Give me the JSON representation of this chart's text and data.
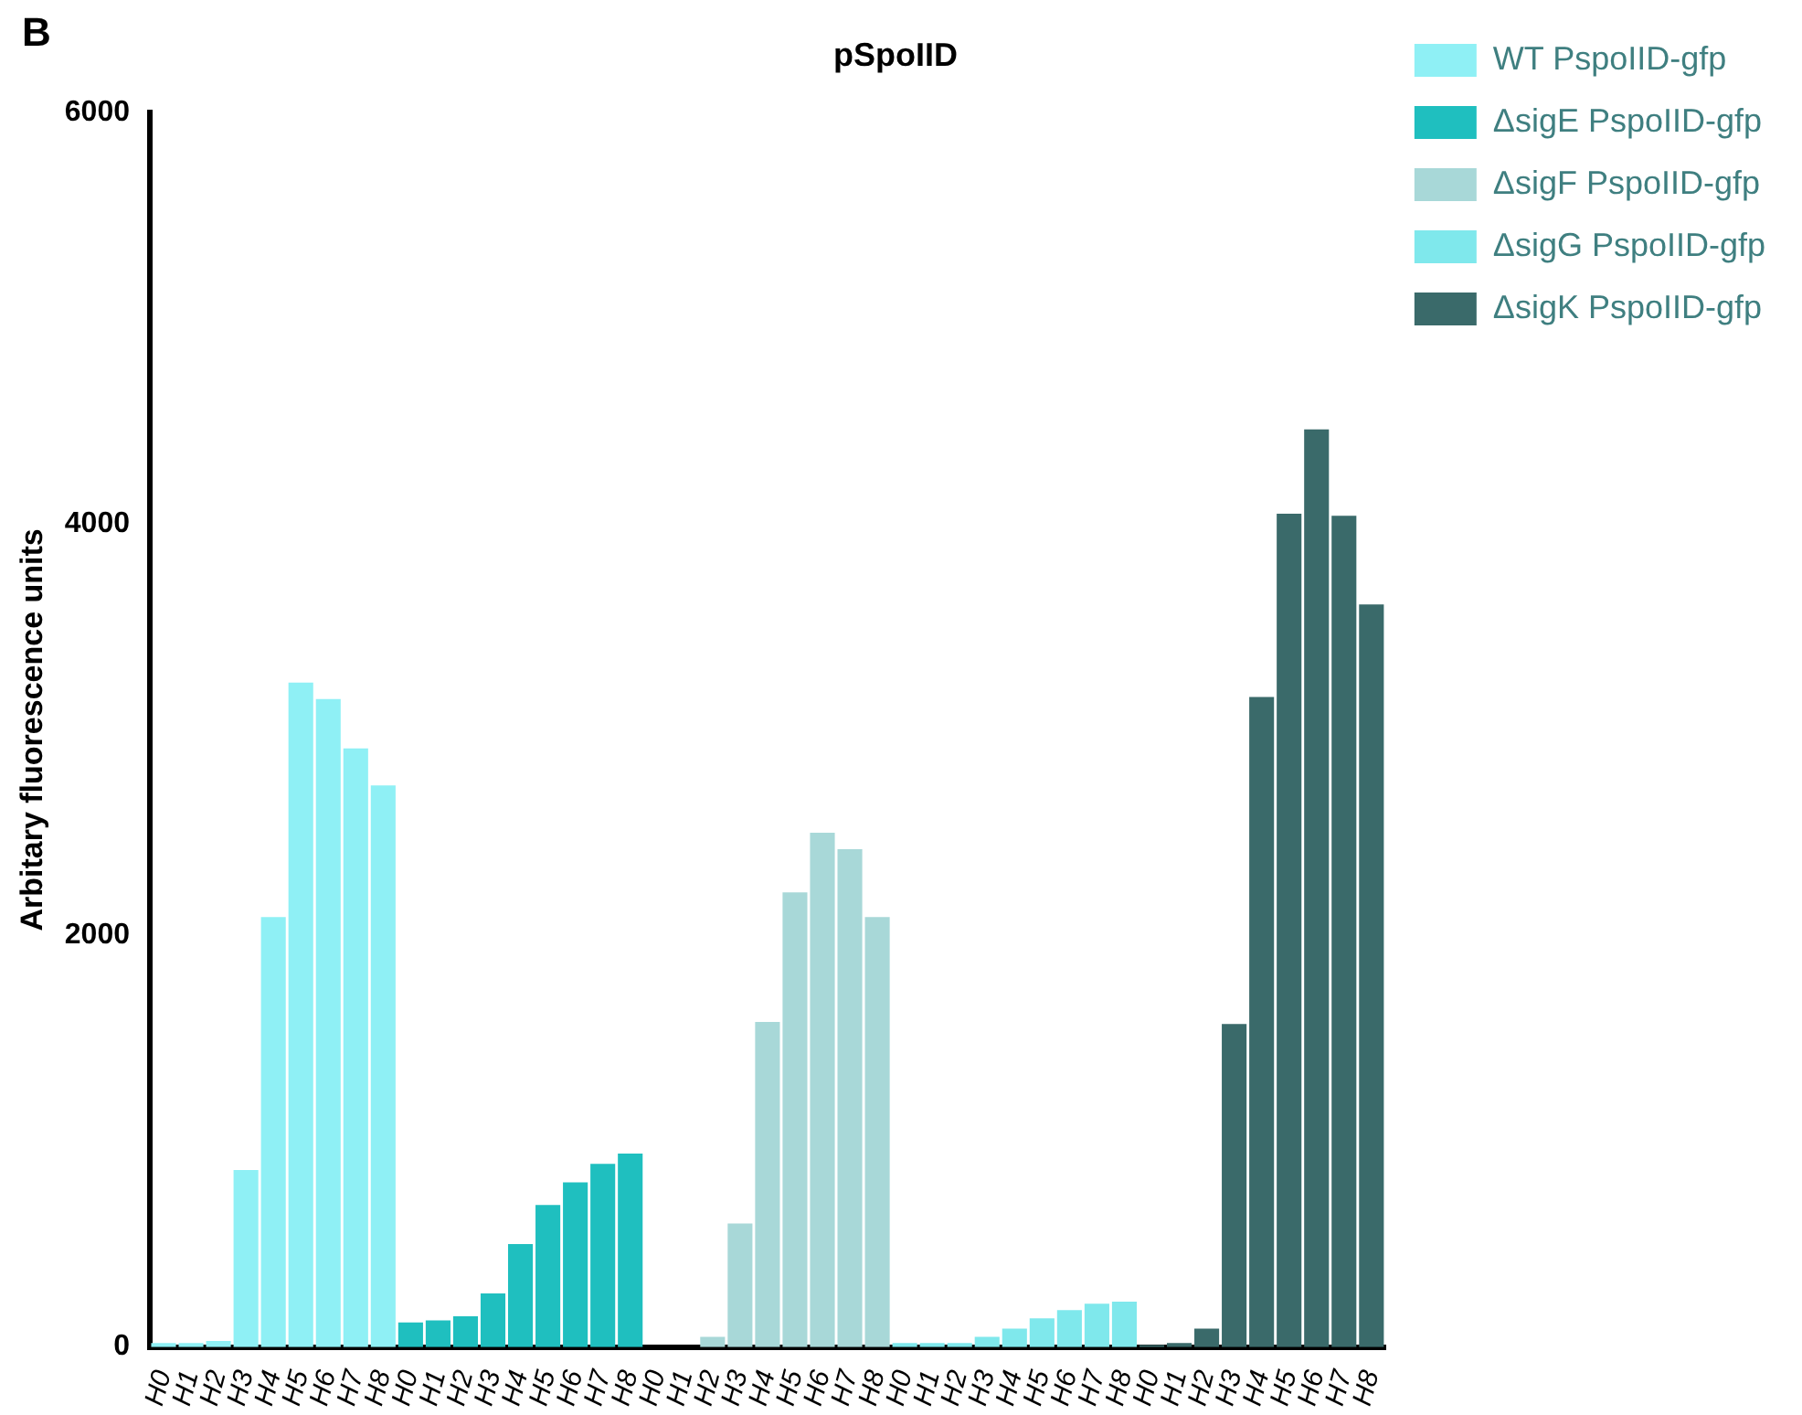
{
  "chart_data": {
    "type": "bar",
    "title": "pSpoIID",
    "ylabel": "Arbitary fluorescence units",
    "annotations": [
      "B"
    ],
    "categories": [
      "H0",
      "H1",
      "H2",
      "H3",
      "H4",
      "H5",
      "H6",
      "H7",
      "H8",
      "H0",
      "H1",
      "H2",
      "H3",
      "H4",
      "H5",
      "H6",
      "H7",
      "H8",
      "H0",
      "H1",
      "H2",
      "H3",
      "H4",
      "H5",
      "H6",
      "H7",
      "H8",
      "H0",
      "H1",
      "H2",
      "H3",
      "H4",
      "H5",
      "H6",
      "H7",
      "H8",
      "H0",
      "H1",
      "H2",
      "H3",
      "H4",
      "H5",
      "H6",
      "H7",
      "H8"
    ],
    "series": [
      {
        "name": "WT PspoIID-gfp",
        "color": "#8ff0f5",
        "values": [
          20,
          20,
          30,
          860,
          2090,
          3230,
          3150,
          2910,
          2730,
          null,
          null,
          null,
          null,
          null,
          null,
          null,
          null,
          null,
          null,
          null,
          null,
          null,
          null,
          null,
          null,
          null,
          null,
          null,
          null,
          null,
          null,
          null,
          null,
          null,
          null,
          null,
          null,
          null,
          null,
          null,
          null,
          null,
          null,
          null,
          null
        ]
      },
      {
        "name": "ΔsigE PspoIID-gfp",
        "color": "#1fbfbf",
        "values": [
          null,
          null,
          null,
          null,
          null,
          null,
          null,
          null,
          null,
          120,
          130,
          150,
          260,
          500,
          690,
          800,
          890,
          940,
          null,
          null,
          null,
          null,
          null,
          null,
          null,
          null,
          null,
          null,
          null,
          null,
          null,
          null,
          null,
          null,
          null,
          null,
          null,
          null,
          null,
          null,
          null,
          null,
          null,
          null,
          null
        ]
      },
      {
        "name": "ΔsigF PspoIID-gfp",
        "color": "#a8d8d8",
        "values": [
          null,
          null,
          null,
          null,
          null,
          null,
          null,
          null,
          null,
          null,
          null,
          null,
          null,
          null,
          null,
          null,
          null,
          null,
          null,
          null,
          50,
          600,
          1580,
          2210,
          2500,
          2420,
          2090,
          null,
          null,
          null,
          null,
          null,
          null,
          null,
          null,
          null,
          null,
          null,
          null,
          null,
          null,
          null,
          null,
          null,
          null
        ]
      },
      {
        "name": "ΔsigG PspoIID-gfp",
        "color": "#7fe8ec",
        "values": [
          null,
          null,
          null,
          null,
          null,
          null,
          null,
          null,
          null,
          null,
          null,
          null,
          null,
          null,
          null,
          null,
          null,
          null,
          null,
          null,
          null,
          null,
          null,
          null,
          null,
          null,
          null,
          20,
          20,
          20,
          50,
          90,
          140,
          180,
          210,
          220,
          null,
          null,
          null,
          null,
          null,
          null,
          null,
          null,
          null
        ]
      },
      {
        "name": "ΔsigK PspoIID-gfp",
        "color": "#3a6a6a",
        "values": [
          null,
          null,
          null,
          null,
          null,
          null,
          null,
          null,
          null,
          null,
          null,
          null,
          null,
          null,
          null,
          null,
          null,
          null,
          null,
          null,
          null,
          null,
          null,
          null,
          null,
          null,
          null,
          null,
          null,
          null,
          null,
          null,
          null,
          null,
          null,
          null,
          10,
          20,
          90,
          1570,
          3160,
          4050,
          4460,
          4040,
          3610
        ]
      }
    ],
    "ylim": [
      0,
      6000
    ],
    "yticks": [
      0,
      2000,
      4000,
      6000
    ],
    "grid": false,
    "legend": "top right"
  }
}
